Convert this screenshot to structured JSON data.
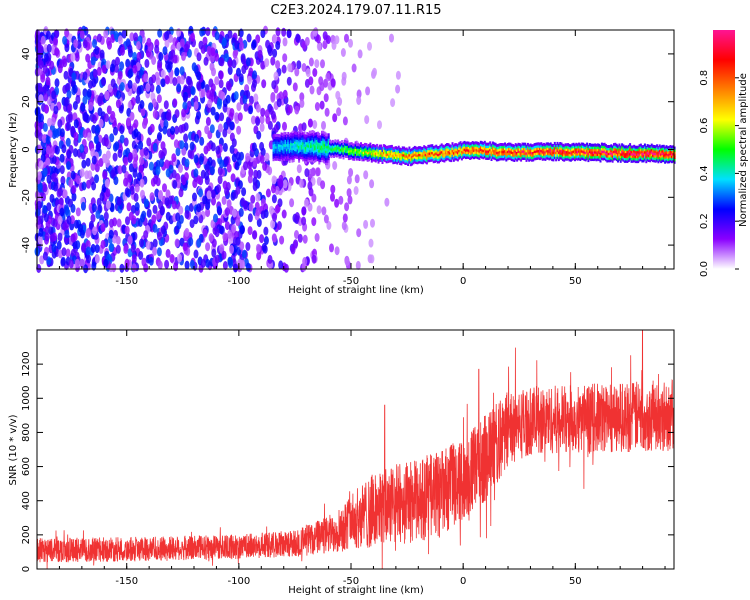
{
  "title": "C2E3.2024.179.07.11.R15",
  "chart_data": [
    {
      "type": "heatmap",
      "xlabel": "Height of straight line (km)",
      "ylabel": "Frequency (Hz)",
      "xlim": [
        -190,
        94
      ],
      "ylim": [
        -50,
        50
      ],
      "xticks": [
        -150,
        -100,
        -50,
        0,
        50
      ],
      "yticks": [
        -40,
        -20,
        0,
        20,
        40
      ],
      "colorbar": {
        "label": "Normalized spectral amplitude",
        "range": [
          0,
          1
        ],
        "ticks": [
          "0.0",
          "0.2",
          "0.4",
          "0.6",
          "0.8"
        ],
        "colors": [
          "#ffffff",
          "#8a00ff",
          "#0000ff",
          "#00e0ff",
          "#00ff00",
          "#ffff00",
          "#ff8000",
          "#ff0000",
          "#ff1493"
        ]
      },
      "ridge": {
        "x": [
          -85,
          -75,
          -65,
          -55,
          -45,
          -35,
          -25,
          -15,
          -5,
          5,
          15,
          25,
          50,
          75,
          94
        ],
        "frequency": [
          1,
          1.5,
          1,
          0,
          -1,
          -2,
          -3,
          -2,
          -1,
          0,
          -1,
          -1,
          -1,
          -1.5,
          -2
        ],
        "amplitude": [
          0.35,
          0.4,
          0.45,
          0.5,
          0.6,
          0.7,
          0.75,
          0.8,
          0.8,
          0.85,
          0.85,
          0.85,
          0.9,
          0.95,
          0.95
        ]
      },
      "noise_region": {
        "x_range": [
          -190,
          -45
        ],
        "amplitude": [
          0.05,
          0.3
        ]
      }
    },
    {
      "type": "line",
      "xlabel": "Height of straight line (km)",
      "ylabel": "SNR (10 * v/v)",
      "xlim": [
        -190,
        94
      ],
      "ylim": [
        0,
        1400
      ],
      "xticks": [
        -150,
        -100,
        -50,
        0,
        50
      ],
      "yticks": [
        0,
        200,
        400,
        600,
        800,
        1000,
        1200
      ],
      "color": "#f03232",
      "envelope": {
        "x": [
          -190,
          -150,
          -100,
          -75,
          -60,
          -50,
          -40,
          -30,
          -20,
          -10,
          0,
          10,
          20,
          30,
          50,
          70,
          90,
          94
        ],
        "mean": [
          110,
          115,
          130,
          150,
          200,
          280,
          340,
          380,
          400,
          440,
          520,
          650,
          820,
          870,
          880,
          890,
          900,
          900
        ],
        "spread": [
          90,
          90,
          90,
          100,
          140,
          200,
          280,
          300,
          300,
          320,
          300,
          320,
          280,
          250,
          250,
          260,
          260,
          260
        ]
      },
      "peaks": [
        {
          "x": -35,
          "y": 960
        },
        {
          "x": 7,
          "y": 1170
        },
        {
          "x": 80,
          "y": 1400
        }
      ]
    }
  ]
}
